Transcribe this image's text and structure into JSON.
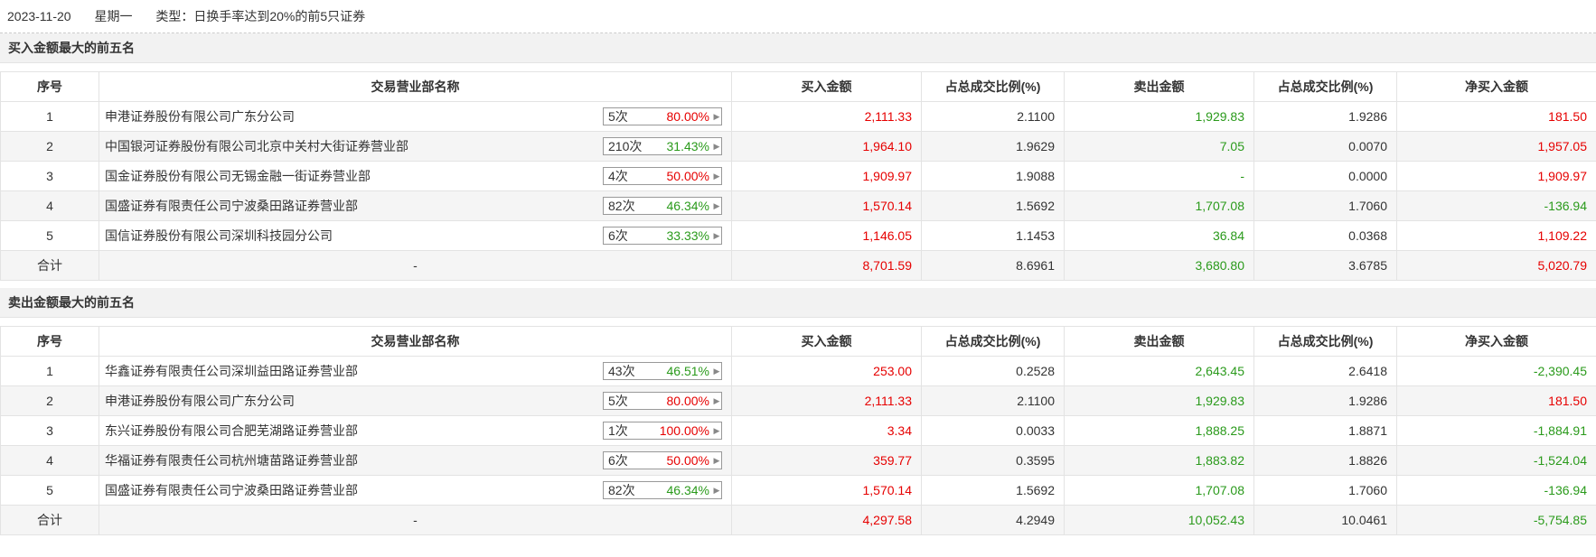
{
  "header": {
    "date": "2023-11-20",
    "weekday": "星期一",
    "type_text": "类型：日换手率达到20%的前5只证券"
  },
  "columns": {
    "index": "序号",
    "dept": "交易营业部名称",
    "buy": "买入金额",
    "buy_ratio": "占总成交比例(%)",
    "sell": "卖出金额",
    "sell_ratio": "占总成交比例(%)",
    "net": "净买入金额"
  },
  "buy_top5": {
    "title": "买入金额最大的前五名",
    "rows": [
      {
        "idx": "1",
        "name": "申港证券股份有限公司广东分公司",
        "count": "5次",
        "pct": "80.00%",
        "pct_color": "red",
        "buy": "2,111.33",
        "buy_ratio": "2.1100",
        "sell": "1,929.83",
        "sell_ratio": "1.9286",
        "net": "181.50",
        "net_color": "red"
      },
      {
        "idx": "2",
        "name": "中国银河证券股份有限公司北京中关村大街证券营业部",
        "count": "210次",
        "pct": "31.43%",
        "pct_color": "green",
        "buy": "1,964.10",
        "buy_ratio": "1.9629",
        "sell": "7.05",
        "sell_ratio": "0.0070",
        "net": "1,957.05",
        "net_color": "red"
      },
      {
        "idx": "3",
        "name": "国金证券股份有限公司无锡金融一街证券营业部",
        "count": "4次",
        "pct": "50.00%",
        "pct_color": "red",
        "buy": "1,909.97",
        "buy_ratio": "1.9088",
        "sell": "-",
        "sell_ratio": "0.0000",
        "net": "1,909.97",
        "net_color": "red"
      },
      {
        "idx": "4",
        "name": "国盛证券有限责任公司宁波桑田路证券营业部",
        "count": "82次",
        "pct": "46.34%",
        "pct_color": "green",
        "buy": "1,570.14",
        "buy_ratio": "1.5692",
        "sell": "1,707.08",
        "sell_ratio": "1.7060",
        "net": "-136.94",
        "net_color": "green"
      },
      {
        "idx": "5",
        "name": "国信证券股份有限公司深圳科技园分公司",
        "count": "6次",
        "pct": "33.33%",
        "pct_color": "green",
        "buy": "1,146.05",
        "buy_ratio": "1.1453",
        "sell": "36.84",
        "sell_ratio": "0.0368",
        "net": "1,109.22",
        "net_color": "red"
      }
    ],
    "total": {
      "label": "合计",
      "name": "-",
      "buy": "8,701.59",
      "buy_ratio": "8.6961",
      "sell": "3,680.80",
      "sell_ratio": "3.6785",
      "net": "5,020.79",
      "net_color": "red"
    }
  },
  "sell_top5": {
    "title": "卖出金额最大的前五名",
    "rows": [
      {
        "idx": "1",
        "name": "华鑫证券有限责任公司深圳益田路证券营业部",
        "count": "43次",
        "pct": "46.51%",
        "pct_color": "green",
        "buy": "253.00",
        "buy_ratio": "0.2528",
        "sell": "2,643.45",
        "sell_ratio": "2.6418",
        "net": "-2,390.45",
        "net_color": "green"
      },
      {
        "idx": "2",
        "name": "申港证券股份有限公司广东分公司",
        "count": "5次",
        "pct": "80.00%",
        "pct_color": "red",
        "buy": "2,111.33",
        "buy_ratio": "2.1100",
        "sell": "1,929.83",
        "sell_ratio": "1.9286",
        "net": "181.50",
        "net_color": "red"
      },
      {
        "idx": "3",
        "name": "东兴证券股份有限公司合肥芜湖路证券营业部",
        "count": "1次",
        "pct": "100.00%",
        "pct_color": "red",
        "buy": "3.34",
        "buy_ratio": "0.0033",
        "sell": "1,888.25",
        "sell_ratio": "1.8871",
        "net": "-1,884.91",
        "net_color": "green"
      },
      {
        "idx": "4",
        "name": "华福证券有限责任公司杭州塘苗路证券营业部",
        "count": "6次",
        "pct": "50.00%",
        "pct_color": "red",
        "buy": "359.77",
        "buy_ratio": "0.3595",
        "sell": "1,883.82",
        "sell_ratio": "1.8826",
        "net": "-1,524.04",
        "net_color": "green"
      },
      {
        "idx": "5",
        "name": "国盛证券有限责任公司宁波桑田路证券营业部",
        "count": "82次",
        "pct": "46.34%",
        "pct_color": "green",
        "buy": "1,570.14",
        "buy_ratio": "1.5692",
        "sell": "1,707.08",
        "sell_ratio": "1.7060",
        "net": "-136.94",
        "net_color": "green"
      }
    ],
    "total": {
      "label": "合计",
      "name": "-",
      "buy": "4,297.58",
      "buy_ratio": "4.2949",
      "sell": "10,052.43",
      "sell_ratio": "10.0461",
      "net": "-5,754.85",
      "net_color": "green"
    }
  },
  "colors": {
    "red": "#e60000",
    "green": "#2a9a1b",
    "stripe": "#f5f5f5",
    "border": "#e3e3e3",
    "section_bg": "#f2f2f2"
  },
  "icons": {
    "pill_arrow": "caret-right-icon"
  }
}
